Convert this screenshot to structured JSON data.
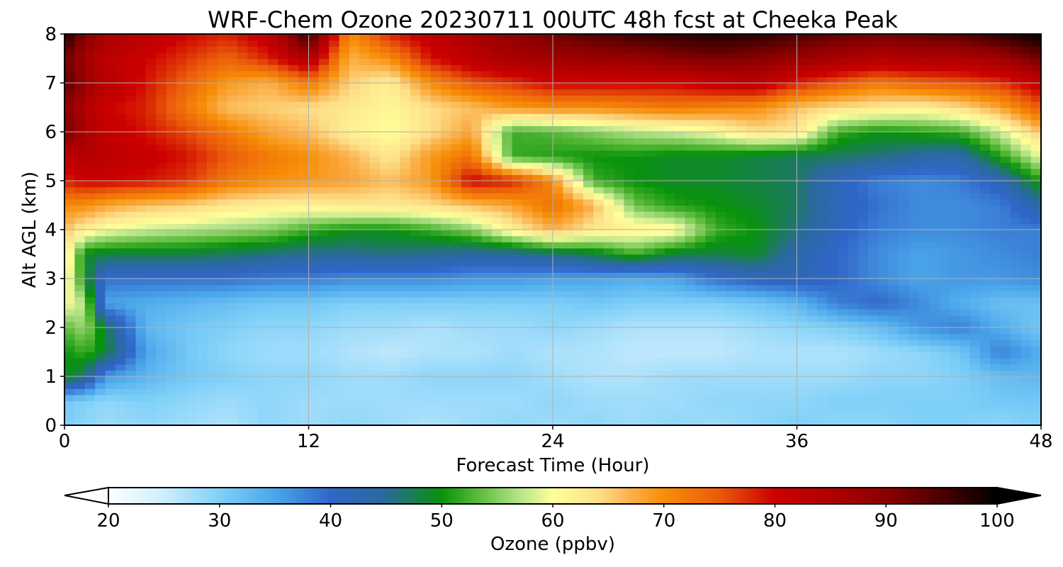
{
  "chart_data": {
    "type": "heatmap",
    "title": "WRF-Chem Ozone  20230711 00UTC 48h fcst at Cheeka Peak",
    "xlabel": "Forecast Time (Hour)",
    "ylabel": "Alt AGL (km)",
    "xlim": [
      0,
      48
    ],
    "ylim": [
      0,
      8
    ],
    "x_ticks": [
      "0",
      "12",
      "24",
      "36",
      "48"
    ],
    "y_ticks": [
      "0",
      "1",
      "2",
      "3",
      "4",
      "5",
      "6",
      "7",
      "8"
    ],
    "grid": true,
    "x": [
      0,
      1,
      2,
      4,
      6,
      8,
      10,
      12,
      14,
      16,
      18,
      20,
      22,
      24,
      26,
      28,
      30,
      32,
      34,
      36,
      38,
      40,
      42,
      44,
      46,
      48
    ],
    "y": [
      0,
      0.5,
      1,
      1.5,
      2,
      2.5,
      3,
      3.5,
      4,
      4.5,
      5,
      5.5,
      6,
      6.5,
      7,
      7.5,
      8
    ],
    "z_units": "ppbv",
    "z": [
      [
        30,
        29,
        28,
        29,
        28,
        27,
        29,
        28,
        29,
        28,
        27,
        28,
        29,
        28,
        29,
        28,
        29,
        28,
        29,
        30,
        29,
        29,
        30,
        30,
        29,
        30
      ],
      [
        31,
        30,
        29,
        30,
        29,
        28,
        29,
        28,
        28,
        28,
        28,
        28,
        28,
        29,
        28,
        28,
        28,
        29,
        29,
        29,
        30,
        30,
        30,
        30,
        31,
        31
      ],
      [
        50,
        46,
        36,
        33,
        31,
        30,
        29,
        29,
        28,
        28,
        29,
        29,
        29,
        28,
        27,
        27,
        28,
        28,
        28,
        28,
        28,
        29,
        29,
        30,
        32,
        33
      ],
      [
        50,
        52,
        49,
        35,
        31,
        29,
        28,
        28,
        27,
        26,
        27,
        27,
        28,
        27,
        27,
        26,
        26,
        26,
        27,
        27,
        27,
        28,
        29,
        31,
        38,
        34
      ],
      [
        53,
        56,
        48,
        33,
        31,
        30,
        29,
        29,
        28,
        28,
        27,
        28,
        28,
        29,
        28,
        27,
        27,
        27,
        28,
        29,
        30,
        32,
        36,
        38,
        34,
        31
      ],
      [
        60,
        57,
        35,
        34,
        33,
        32,
        31,
        31,
        30,
        30,
        30,
        30,
        30,
        30,
        31,
        30,
        30,
        30,
        31,
        33,
        38,
        40,
        37,
        34,
        32,
        32
      ],
      [
        62,
        50,
        39,
        39,
        39,
        39,
        38,
        38,
        37,
        37,
        37,
        36,
        36,
        35,
        35,
        34,
        35,
        39,
        41,
        42,
        40,
        37,
        35,
        36,
        36,
        37
      ],
      [
        64,
        49,
        48,
        48,
        48,
        47,
        46,
        45,
        45,
        46,
        45,
        44,
        44,
        46,
        48,
        52,
        48,
        48,
        49,
        43,
        40,
        37,
        35,
        36,
        37,
        38
      ],
      [
        66,
        62,
        60,
        58,
        57,
        56,
        55,
        52,
        50,
        50,
        52,
        55,
        62,
        67,
        63,
        62,
        61,
        52,
        50,
        46,
        41,
        38,
        37,
        37,
        38,
        38
      ],
      [
        70,
        70,
        68,
        66,
        65,
        63,
        62,
        62,
        63,
        63,
        64,
        66,
        68,
        73,
        67,
        54,
        51,
        50,
        49,
        47,
        42,
        39,
        37,
        37,
        38,
        44
      ],
      [
        78,
        80,
        80,
        79,
        77,
        72,
        70,
        69,
        68,
        66,
        69,
        80,
        78,
        70,
        52,
        50,
        49,
        49,
        48,
        47,
        41,
        38,
        37,
        38,
        42,
        51
      ],
      [
        82,
        85,
        83,
        81,
        79,
        75,
        72,
        70,
        67,
        63,
        69,
        73,
        52,
        51,
        50,
        50,
        49,
        49,
        48,
        47,
        47,
        46,
        44,
        43,
        51,
        59
      ],
      [
        92,
        86,
        82,
        79,
        76,
        72,
        68,
        66,
        62,
        60,
        64,
        68,
        52,
        53,
        55,
        57,
        58,
        60,
        64,
        63,
        52,
        50,
        51,
        52,
        58,
        66
      ],
      [
        90,
        85,
        80,
        78,
        72,
        66,
        65,
        64,
        63,
        61,
        64,
        66,
        69,
        70,
        70,
        71,
        72,
        71,
        70,
        66,
        64,
        63,
        62,
        64,
        68,
        75
      ],
      [
        94,
        88,
        84,
        79,
        74,
        69,
        67,
        72,
        65,
        62,
        70,
        75,
        77,
        80,
        80,
        80,
        80,
        82,
        83,
        78,
        75,
        72,
        74,
        75,
        77,
        82
      ],
      [
        92,
        87,
        83,
        80,
        77,
        74,
        78,
        85,
        67,
        70,
        79,
        83,
        86,
        87,
        88,
        88,
        90,
        91,
        90,
        88,
        86,
        84,
        85,
        85,
        87,
        92
      ],
      [
        98,
        90,
        86,
        83,
        80,
        78,
        82,
        97,
        70,
        78,
        82,
        86,
        89,
        92,
        94,
        96,
        97,
        98,
        97,
        95,
        93,
        92,
        93,
        94,
        97,
        100
      ]
    ],
    "colorbar": {
      "label": "Ozone  (ppbv)",
      "min": 20,
      "max": 100,
      "ticks": [
        "20",
        "30",
        "40",
        "50",
        "60",
        "70",
        "80",
        "90",
        "100"
      ],
      "extend": "both",
      "colors": [
        [
          20,
          "#ffffff"
        ],
        [
          25,
          "#cfeefd"
        ],
        [
          30,
          "#7fd0f8"
        ],
        [
          35,
          "#4aa5ea"
        ],
        [
          40,
          "#3066c9"
        ],
        [
          45,
          "#2a6a9a"
        ],
        [
          50,
          "#08920c"
        ],
        [
          53,
          "#55b835"
        ],
        [
          57,
          "#b6e38a"
        ],
        [
          60,
          "#ffff9a"
        ],
        [
          64,
          "#fde08a"
        ],
        [
          67,
          "#fbb04a"
        ],
        [
          70,
          "#f78e08"
        ],
        [
          75,
          "#ea5a0a"
        ],
        [
          80,
          "#cc0000"
        ],
        [
          85,
          "#b00000"
        ],
        [
          90,
          "#8a0000"
        ],
        [
          95,
          "#4a0000"
        ],
        [
          100,
          "#000000"
        ]
      ]
    }
  }
}
